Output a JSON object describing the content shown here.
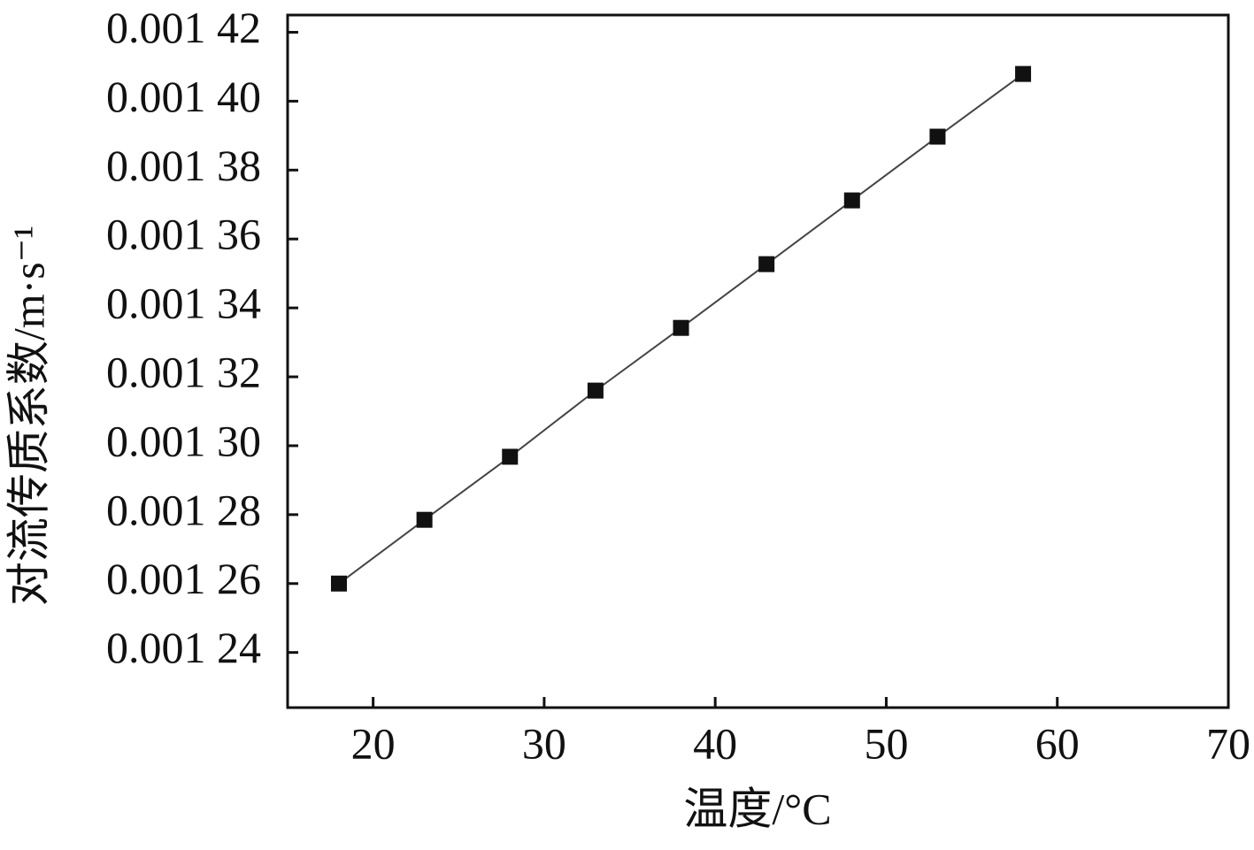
{
  "chart_data": {
    "type": "line",
    "x_label": "温度/°C",
    "y_label": "对流传质系数/m·s⁻¹",
    "x": [
      18,
      23,
      28,
      33,
      38,
      43,
      48,
      53,
      58
    ],
    "series": [
      {
        "color": "#111111",
        "values": [
          0.00126,
          0.0012785,
          0.0012968,
          0.001316,
          0.0013342,
          0.0013527,
          0.0013712,
          0.0013897,
          0.0014079
        ]
      }
    ],
    "xlim": [
      15,
      70
    ],
    "xticks": [
      20,
      30,
      40,
      50,
      60,
      70
    ],
    "ylim": [
      0.001224,
      0.001425
    ],
    "yticks": [
      {
        "value": 0.00124,
        "label": "0.001 24"
      },
      {
        "value": 0.00126,
        "label": "0.001 26"
      },
      {
        "value": 0.00128,
        "label": "0.001 28"
      },
      {
        "value": 0.0013,
        "label": "0.001 30"
      },
      {
        "value": 0.00132,
        "label": "0.001 32"
      },
      {
        "value": 0.00134,
        "label": "0.001 34"
      },
      {
        "value": 0.00136,
        "label": "0.001 36"
      },
      {
        "value": 0.00138,
        "label": "0.001 38"
      },
      {
        "value": 0.0014,
        "label": "0.001 40"
      },
      {
        "value": 0.00142,
        "label": "0.001 42"
      }
    ],
    "grid": false
  }
}
